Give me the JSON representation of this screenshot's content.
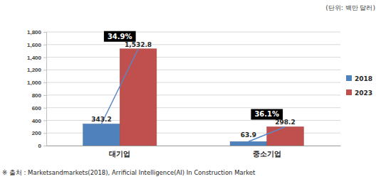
{
  "chart_data": {
    "type": "bar",
    "subtitle": "(단위: 백만 달러)",
    "categories": [
      "대기업",
      "중소기업"
    ],
    "series": [
      {
        "name": "2018",
        "color": "#4f81bd",
        "values": [
          343.2,
          63.9
        ],
        "value_labels": [
          "343.2",
          "63.9"
        ]
      },
      {
        "name": "2023",
        "color": "#c0504d",
        "values": [
          1532.8,
          298.2
        ],
        "value_labels": [
          "1,532.8",
          "298.2"
        ]
      }
    ],
    "ylim": [
      0,
      1800
    ],
    "yticks": [
      0,
      200,
      400,
      600,
      800,
      {
        "value": 1000,
        "label": "1,000"
      },
      {
        "value": 1200,
        "label": "1,200"
      },
      {
        "value": 1400,
        "label": "1,400"
      },
      {
        "value": 1600,
        "label": "1,600"
      },
      {
        "value": 1800,
        "label": "1,800"
      }
    ],
    "grid": true,
    "legend": "right",
    "data_labels": true,
    "annotations": [
      "34.9%",
      "36.1%"
    ],
    "source": "※ 출처 : Marketsandmarkets(2018), Arrificial Intelligence(AI) In Construction Market"
  }
}
